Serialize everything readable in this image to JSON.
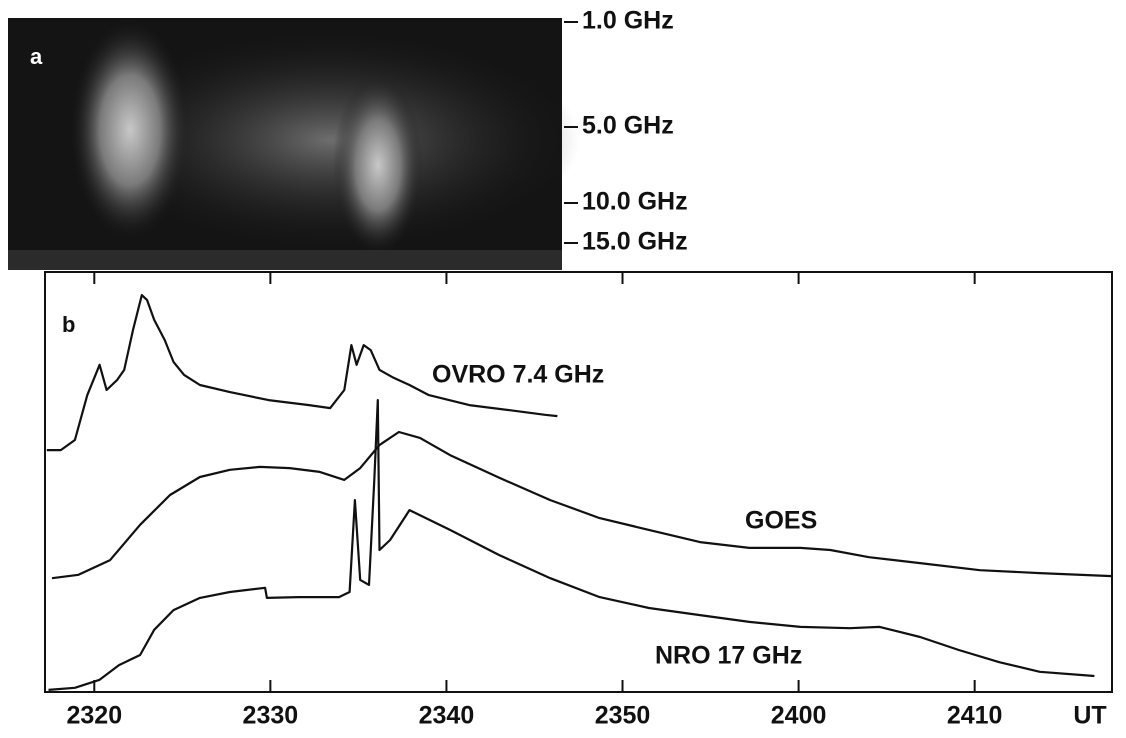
{
  "chart_data": {
    "type": "line",
    "panel_a": {
      "label": "a",
      "frequency_labels": [
        "1.0 GHz",
        "5.0 GHz",
        "10.0 GHz",
        "15.0 GHz"
      ]
    },
    "panel_b": {
      "label": "b"
    },
    "x_label": "UT",
    "xlim": [
      17.2,
      77.8
    ],
    "xticks": [
      {
        "value": 20,
        "label": "2320"
      },
      {
        "value": 30,
        "label": "2330"
      },
      {
        "value": 40,
        "label": "2340"
      },
      {
        "value": 50,
        "label": "2350"
      },
      {
        "value": 60,
        "label": "2400"
      },
      {
        "value": 70,
        "label": "2410"
      }
    ],
    "ylim": [
      0,
      100
    ],
    "series": [
      {
        "name": "OVRO 7.4 GHz",
        "color": "#111111",
        "x": [
          17.3,
          18.1,
          18.9,
          19.6,
          20.3,
          20.7,
          21.3,
          21.7,
          22.2,
          22.7,
          23.0,
          23.4,
          24.0,
          24.5,
          25.1,
          26.0,
          27.7,
          29.9,
          32.2,
          33.4,
          34.2,
          34.6,
          34.9,
          35.3,
          35.7,
          36.2,
          37.0,
          37.9,
          39.0,
          41.3,
          43.6,
          45.6,
          46.3
        ],
        "values": [
          57.6,
          57.6,
          60,
          70.7,
          77.9,
          71.9,
          74.3,
          76.7,
          86.2,
          94.5,
          93.3,
          88.6,
          83.8,
          78.6,
          75.5,
          73.1,
          71.4,
          69.5,
          68.3,
          67.6,
          71.9,
          82.6,
          77.9,
          82.6,
          81.4,
          76.7,
          74.8,
          73.1,
          70.7,
          68.3,
          67.1,
          66,
          65.7
        ]
      },
      {
        "name": "GOES",
        "color": "#111111",
        "x": [
          17.6,
          19.1,
          20.9,
          22.6,
          24.3,
          26.0,
          27.7,
          29.4,
          31.1,
          32.8,
          34.2,
          35.1,
          36.2,
          37.3,
          38.5,
          40.2,
          43.0,
          45.9,
          48.7,
          51.5,
          54.4,
          57.2,
          60.1,
          61.8,
          64.0,
          66.9,
          70.3,
          73.7,
          77.8
        ],
        "values": [
          27.1,
          27.9,
          31.4,
          39.8,
          46.9,
          51.2,
          52.9,
          53.6,
          53.3,
          52.4,
          50.5,
          53.3,
          58.8,
          61.9,
          60.5,
          56.4,
          51.0,
          45.7,
          41.4,
          38.6,
          35.7,
          34.3,
          34.3,
          33.8,
          32.1,
          30.7,
          29.0,
          28.3,
          27.6
        ]
      },
      {
        "name": "NRO 17 GHz",
        "color": "#111111",
        "x": [
          17.4,
          18.9,
          20.3,
          21.4,
          22.6,
          23.4,
          24.5,
          26.0,
          27.7,
          29.7,
          29.8,
          31.6,
          33.9,
          34.5,
          34.8,
          35.1,
          35.6,
          35.9,
          36.1,
          36.2,
          36.8,
          37.9,
          38.5,
          40.2,
          43.0,
          45.9,
          48.7,
          51.5,
          54.4,
          57.2,
          60.1,
          62.9,
          64.6,
          66.9,
          69.1,
          71.4,
          73.7,
          76.8
        ],
        "values": [
          0.5,
          1.0,
          2.9,
          6.4,
          8.8,
          14.8,
          19.5,
          22.4,
          23.8,
          24.8,
          22.4,
          22.6,
          22.6,
          23.8,
          45.7,
          26.7,
          25.5,
          50.5,
          69.5,
          33.8,
          36.2,
          43.3,
          42.1,
          38.6,
          32.6,
          27.1,
          22.6,
          20.0,
          18.3,
          16.7,
          15.5,
          15.2,
          15.5,
          13.1,
          10.0,
          7.1,
          4.8,
          3.8
        ]
      }
    ]
  }
}
